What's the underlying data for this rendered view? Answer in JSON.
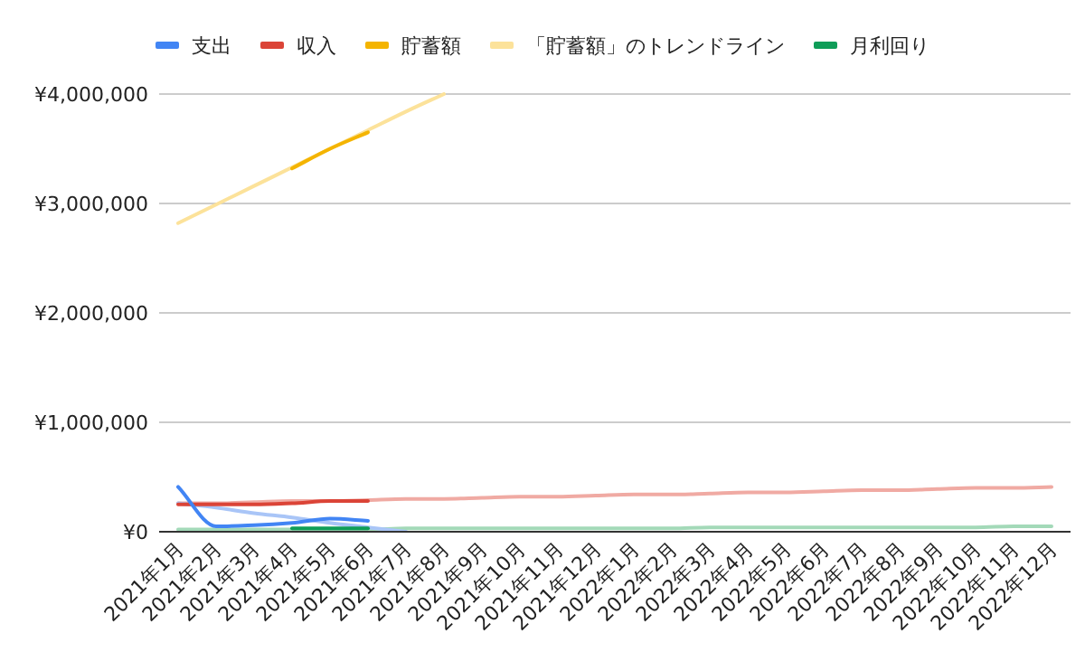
{
  "chart_data": {
    "type": "line",
    "categories": [
      "2021年1月",
      "2021年2月",
      "2021年3月",
      "2021年4月",
      "2021年5月",
      "2021年6月",
      "2021年7月",
      "2021年8月",
      "2021年9月",
      "2021年10月",
      "2021年11月",
      "2021年12月",
      "2022年1月",
      "2022年2月",
      "2022年3月",
      "2022年4月",
      "2022年5月",
      "2022年6月",
      "2022年7月",
      "2022年8月",
      "2022年9月",
      "2022年10月",
      "2022年11月",
      "2022年12月"
    ],
    "series": [
      {
        "name": "支出",
        "color": "#4285f4",
        "values": [
          410000,
          50000,
          60000,
          80000,
          120000,
          100000,
          null,
          null,
          null,
          null,
          null,
          null,
          null,
          null,
          null,
          null,
          null,
          null,
          null,
          null,
          null,
          null,
          null,
          null
        ]
      },
      {
        "name": "収入",
        "color": "#db4437",
        "values": [
          250000,
          250000,
          250000,
          260000,
          280000,
          280000,
          null,
          null,
          null,
          null,
          null,
          null,
          null,
          null,
          null,
          null,
          null,
          null,
          null,
          null,
          null,
          null,
          null,
          null
        ]
      },
      {
        "name": "貯蓄額",
        "color": "#f4b400",
        "values": [
          null,
          null,
          null,
          3320000,
          3500000,
          3650000,
          null,
          null,
          null,
          null,
          null,
          null,
          null,
          null,
          null,
          null,
          null,
          null,
          null,
          null,
          null,
          null,
          null,
          null
        ]
      },
      {
        "name": "「貯蓄額」のトレンドライン",
        "color": "#fce29a",
        "values": [
          2820000,
          2990000,
          3160000,
          3330000,
          3500000,
          3670000,
          3840000,
          4000000,
          null,
          null,
          null,
          null,
          null,
          null,
          null,
          null,
          null,
          null,
          null,
          null,
          null,
          null,
          null,
          null
        ]
      },
      {
        "name": "月利回り",
        "color": "#0f9d58",
        "values": [
          null,
          null,
          null,
          30000,
          30000,
          30000,
          null,
          null,
          null,
          null,
          null,
          null,
          null,
          null,
          null,
          null,
          null,
          null,
          null,
          null,
          null,
          null,
          null,
          null
        ]
      },
      {
        "color": "#a9c5f7",
        "values": [
          260000,
          220000,
          170000,
          130000,
          80000,
          40000,
          0,
          null,
          null,
          null,
          null,
          null,
          null,
          null,
          null,
          null,
          null,
          null,
          null,
          null,
          null,
          null,
          null,
          null
        ]
      },
      {
        "color": "#f0aaa3",
        "values": [
          260000,
          260000,
          270000,
          280000,
          280000,
          290000,
          300000,
          300000,
          310000,
          320000,
          320000,
          330000,
          340000,
          340000,
          350000,
          360000,
          360000,
          370000,
          380000,
          380000,
          390000,
          400000,
          400000,
          410000
        ]
      },
      {
        "color": "#a3d9b8",
        "values": [
          20000,
          20000,
          20000,
          20000,
          20000,
          20000,
          30000,
          30000,
          30000,
          30000,
          30000,
          30000,
          30000,
          30000,
          40000,
          40000,
          40000,
          40000,
          40000,
          40000,
          40000,
          40000,
          50000,
          50000
        ]
      }
    ],
    "ylim": [
      0,
      4000000
    ],
    "yticks": [
      {
        "value": 0,
        "label": "¥0"
      },
      {
        "value": 1000000,
        "label": "¥1,000,000"
      },
      {
        "value": 2000000,
        "label": "¥2,000,000"
      },
      {
        "value": 3000000,
        "label": "¥3,000,000"
      },
      {
        "value": 4000000,
        "label": "¥4,000,000"
      }
    ],
    "grid": "y",
    "legend": "top",
    "marker": "none",
    "line_style": "solid"
  }
}
